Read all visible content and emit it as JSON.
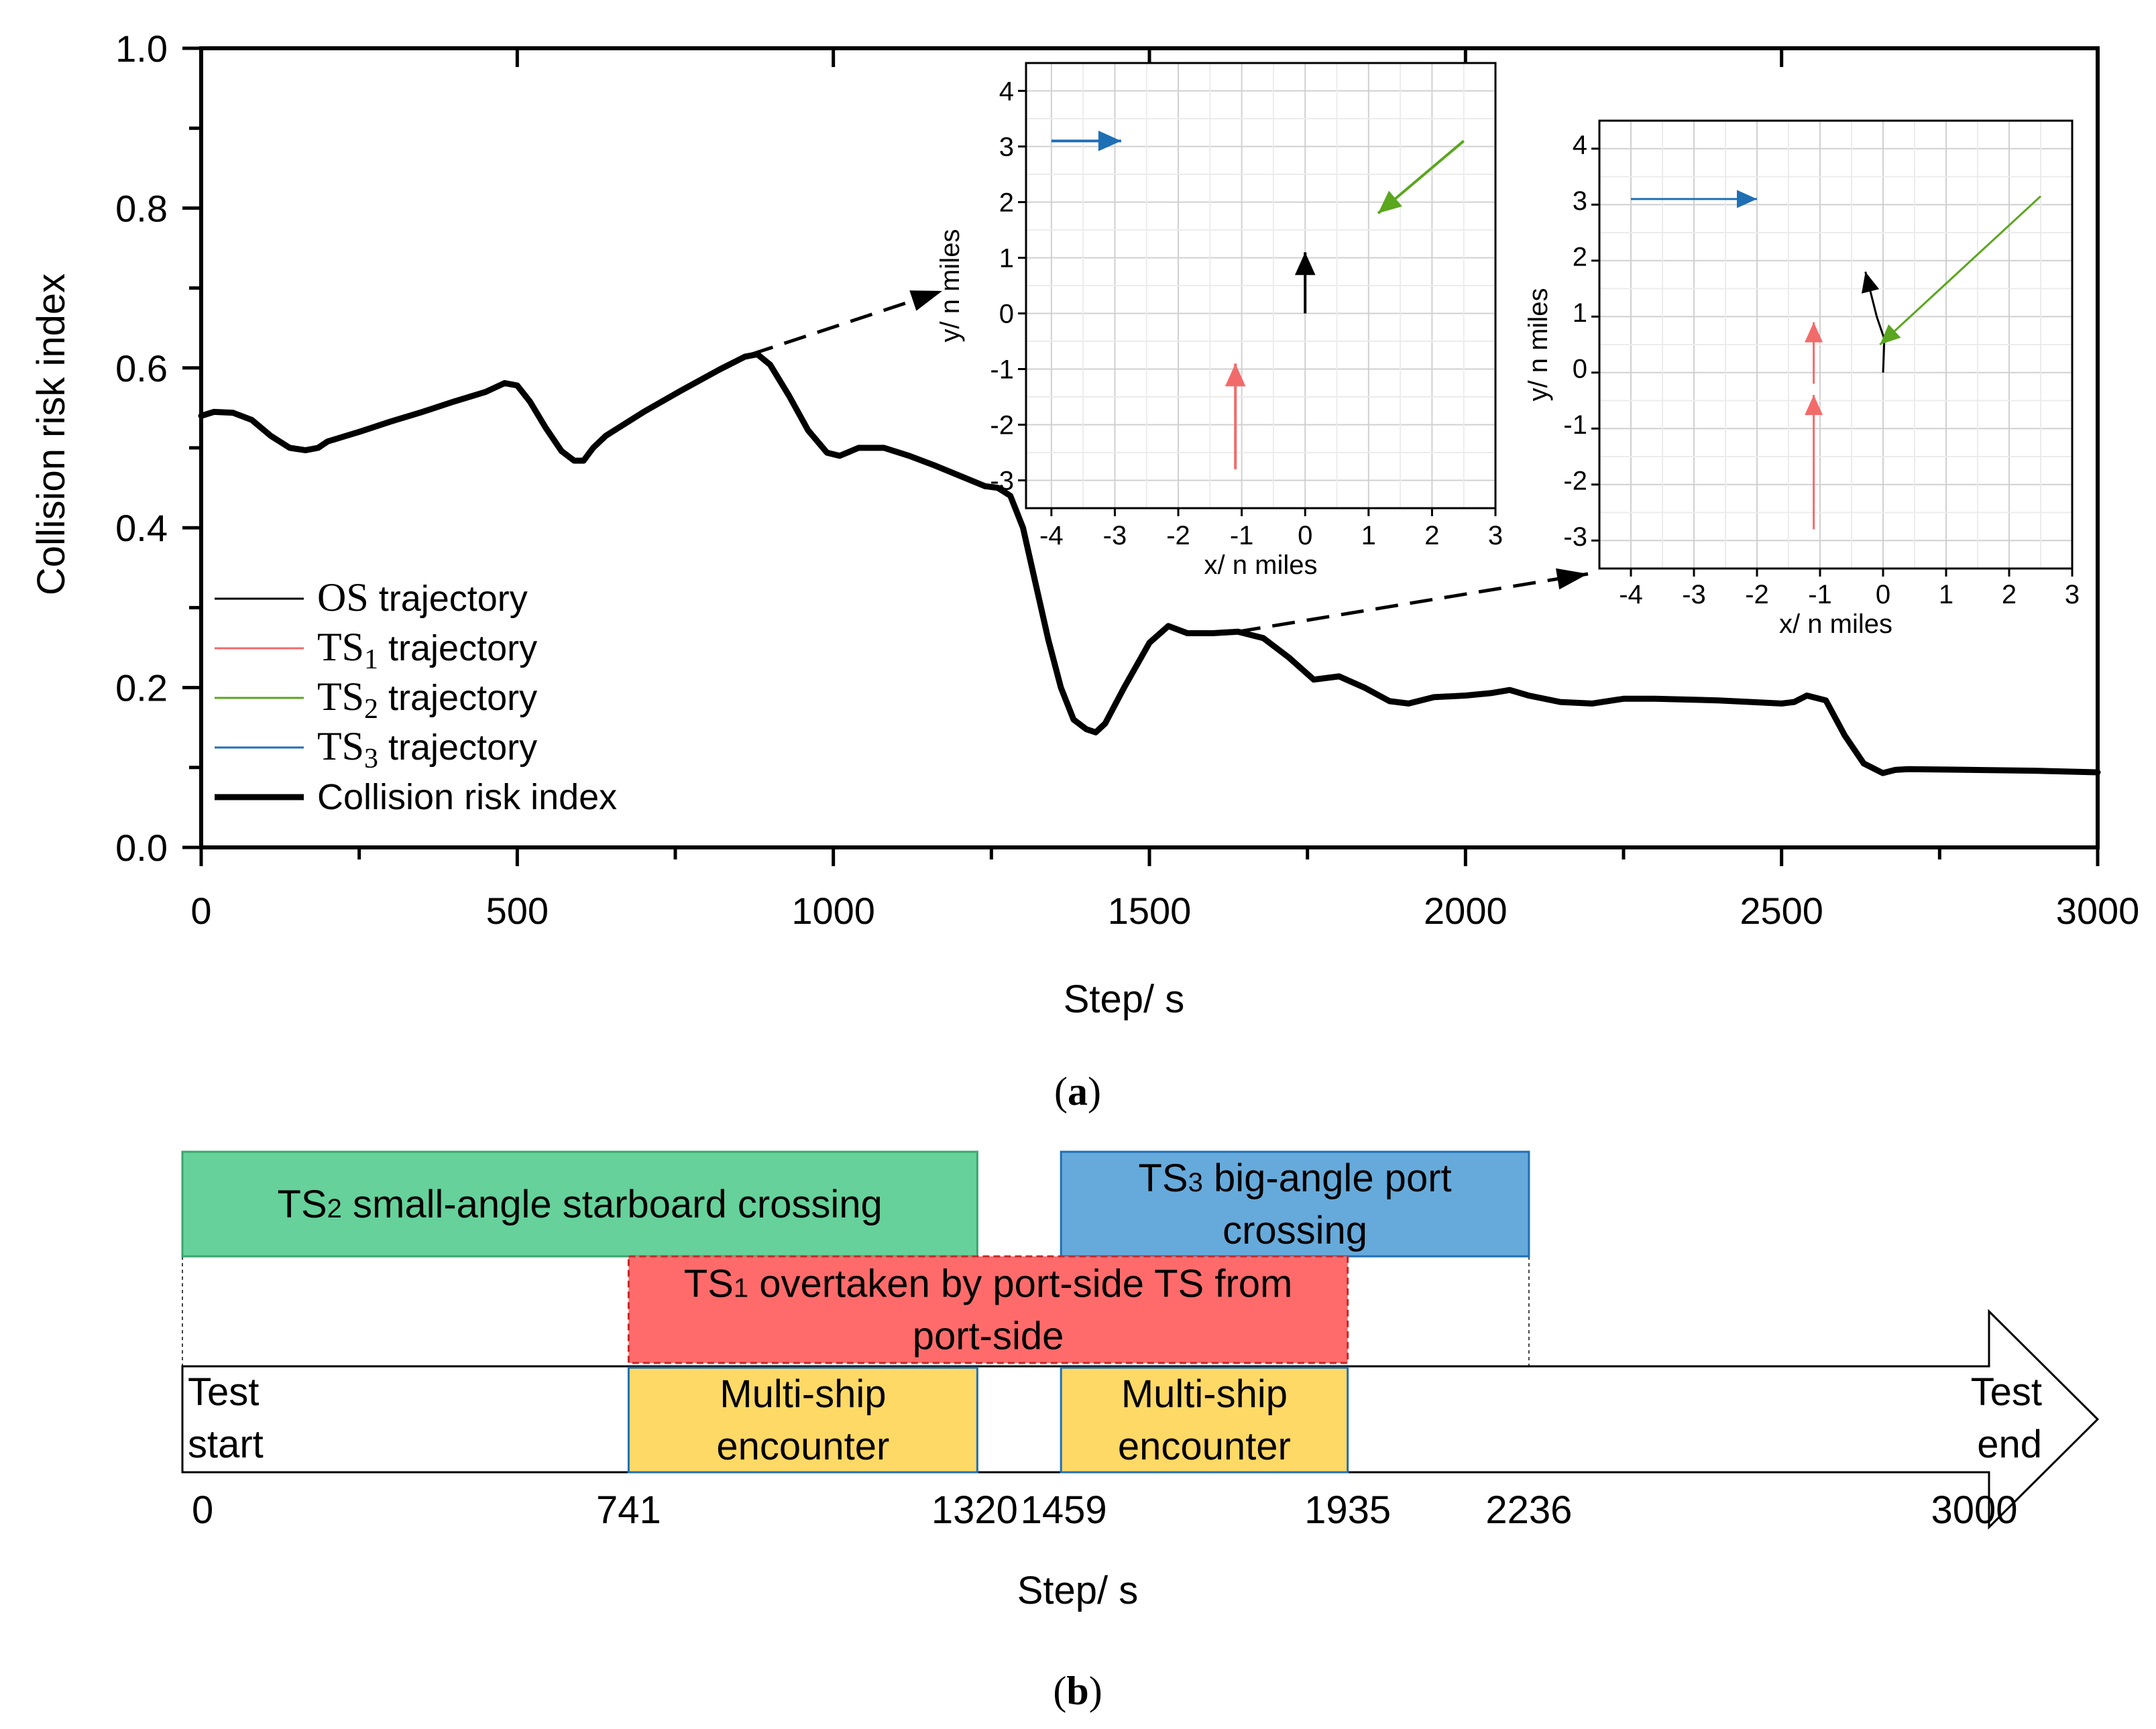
{
  "chart_data": [
    {
      "type": "line",
      "panel": "(a)",
      "xlabel": "Step/ s",
      "ylabel": "Collision risk index",
      "xlim": [
        0,
        3000
      ],
      "ylim": [
        0,
        1.0
      ],
      "xticks": [
        "0",
        "500",
        "1000",
        "1500",
        "2000",
        "2500",
        "3000"
      ],
      "yticks": [
        "0.0",
        "0.2",
        "0.4",
        "0.6",
        "0.8",
        "1.0"
      ],
      "series": [
        {
          "name": "Collision risk index",
          "color": "#000000",
          "x": [
            0,
            20,
            50,
            80,
            110,
            140,
            165,
            185,
            200,
            250,
            300,
            350,
            400,
            450,
            480,
            500,
            520,
            545,
            570,
            590,
            605,
            620,
            640,
            700,
            760,
            820,
            860,
            880,
            900,
            930,
            960,
            990,
            1010,
            1040,
            1080,
            1120,
            1160,
            1200,
            1240,
            1260,
            1280,
            1300,
            1320,
            1340,
            1360,
            1380,
            1400,
            1415,
            1430,
            1460,
            1500,
            1530,
            1560,
            1600,
            1640,
            1680,
            1720,
            1760,
            1800,
            1840,
            1880,
            1910,
            1950,
            2000,
            2040,
            2070,
            2100,
            2150,
            2200,
            2250,
            2300,
            2400,
            2500,
            2520,
            2540,
            2570,
            2600,
            2630,
            2660,
            2680,
            2700,
            2800,
            2900,
            3000
          ],
          "values": [
            0.54,
            0.545,
            0.544,
            0.535,
            0.515,
            0.5,
            0.497,
            0.5,
            0.508,
            0.52,
            0.533,
            0.545,
            0.558,
            0.57,
            0.581,
            0.578,
            0.558,
            0.525,
            0.496,
            0.484,
            0.484,
            0.5,
            0.515,
            0.545,
            0.572,
            0.598,
            0.614,
            0.617,
            0.604,
            0.565,
            0.522,
            0.494,
            0.49,
            0.5,
            0.5,
            0.49,
            0.478,
            0.465,
            0.452,
            0.45,
            0.44,
            0.4,
            0.33,
            0.26,
            0.2,
            0.16,
            0.148,
            0.144,
            0.155,
            0.2,
            0.256,
            0.277,
            0.268,
            0.268,
            0.27,
            0.262,
            0.238,
            0.21,
            0.214,
            0.2,
            0.183,
            0.18,
            0.188,
            0.19,
            0.193,
            0.197,
            0.19,
            0.182,
            0.18,
            0.186,
            0.186,
            0.184,
            0.18,
            0.182,
            0.19,
            0.184,
            0.14,
            0.105,
            0.093,
            0.097,
            0.098,
            0.097,
            0.096,
            0.094
          ]
        }
      ],
      "legend": [
        {
          "math": "OS",
          "sub": "",
          "text": " trajectory",
          "color": "#000000"
        },
        {
          "math": "TS",
          "sub": "1",
          "text": " trajectory",
          "color": "#f26b6b"
        },
        {
          "math": "TS",
          "sub": "2",
          "text": " trajectory",
          "color": "#5aa61e"
        },
        {
          "math": "TS",
          "sub": "3",
          "text": " trajectory",
          "color": "#1f6fb5"
        },
        {
          "math": "",
          "sub": "",
          "text": "Collision risk index",
          "color": "#000000"
        }
      ],
      "insets": [
        {
          "at_step": 870,
          "xlabel": "x/ n miles",
          "ylabel": "y/ n miles",
          "xlim": [
            -4.4,
            3.0
          ],
          "ylim": [
            -3.5,
            4.5
          ],
          "xticks": [
            "-4",
            "-3",
            "-2",
            "-1",
            "0",
            "1",
            "2",
            "3"
          ],
          "yticks": [
            "-3",
            "-2",
            "-1",
            "0",
            "1",
            "2",
            "3",
            "4"
          ],
          "tracks": [
            {
              "ship": "OS",
              "color": "#000000",
              "points": [
                [
                  0,
                  0
                ],
                [
                  0,
                  1.1
                ]
              ]
            },
            {
              "ship": "TS1",
              "color": "#f26b6b",
              "points": [
                [
                  -1.1,
                  -2.8
                ],
                [
                  -1.1,
                  -0.9
                ]
              ]
            },
            {
              "ship": "TS2",
              "color": "#5aa61e",
              "points": [
                [
                  2.5,
                  3.1
                ],
                [
                  1.15,
                  1.8
                ]
              ]
            },
            {
              "ship": "TS3",
              "color": "#1f6fb5",
              "points": [
                [
                  -4.0,
                  3.1
                ],
                [
                  -2.9,
                  3.1
                ]
              ]
            }
          ]
        },
        {
          "at_step": 1640,
          "xlabel": "x/ n miles",
          "ylabel": "y/ n miles",
          "xlim": [
            -4.5,
            3.0
          ],
          "ylim": [
            -3.5,
            4.5
          ],
          "xticks": [
            "-4",
            "-3",
            "-2",
            "-1",
            "0",
            "1",
            "2",
            "3"
          ],
          "yticks": [
            "-3",
            "-2",
            "-1",
            "0",
            "1",
            "2",
            "3",
            "4"
          ],
          "tracks": [
            {
              "ship": "OS",
              "color": "#000000",
              "points": [
                [
                  0,
                  0
                ],
                [
                  0.02,
                  0.6
                ],
                [
                  -0.1,
                  1.0
                ],
                [
                  -0.28,
                  1.8
                ]
              ]
            },
            {
              "ship": "TS1-a",
              "color": "#f26b6b",
              "points": [
                [
                  -1.1,
                  -2.8
                ],
                [
                  -1.1,
                  -0.4
                ]
              ]
            },
            {
              "ship": "TS1-b",
              "color": "#f26b6b",
              "points": [
                [
                  -1.1,
                  -0.2
                ],
                [
                  -1.1,
                  0.9
                ]
              ]
            },
            {
              "ship": "TS2",
              "color": "#5aa61e",
              "points": [
                [
                  2.5,
                  3.15
                ],
                [
                  -0.05,
                  0.5
                ]
              ]
            },
            {
              "ship": "TS3",
              "color": "#1f6fb5",
              "points": [
                [
                  -4.0,
                  3.1
                ],
                [
                  -2.0,
                  3.1
                ]
              ]
            }
          ]
        }
      ]
    },
    {
      "type": "timeline",
      "panel": "(b)",
      "xlabel": "Step/ s",
      "xlim": [
        0,
        3000
      ],
      "tick_values": [
        0,
        741,
        1320,
        1459,
        1935,
        2236,
        3000
      ],
      "tick_labels": [
        "0",
        "741",
        "1320",
        "1459",
        "1935",
        "2236",
        "3000"
      ],
      "start_label": [
        "Test",
        "start"
      ],
      "end_label": [
        "Test",
        "end"
      ],
      "events": [
        {
          "prefix": "TS",
          "sub": "2",
          "lines": [
            " small-angle starboard crossing"
          ],
          "start": 0,
          "end": 1320,
          "lane": 0,
          "color": "#66d19a"
        },
        {
          "prefix": "TS",
          "sub": "3",
          "lines": [
            " big-angle port",
            "crossing"
          ],
          "start": 1459,
          "end": 2236,
          "lane": 0,
          "color": "#66aadb"
        },
        {
          "prefix": "TS",
          "sub": "1",
          "lines": [
            " overtaken by port-side TS from",
            "port-side"
          ],
          "start": 741,
          "end": 1935,
          "lane": 1,
          "color": "#ff6b6b"
        },
        {
          "prefix": "",
          "sub": "",
          "lines": [
            "Multi-ship",
            "encounter"
          ],
          "start": 741,
          "end": 1320,
          "lane": 2,
          "color": "#ffd966"
        },
        {
          "prefix": "",
          "sub": "",
          "lines": [
            "Multi-ship",
            "encounter"
          ],
          "start": 1459,
          "end": 1935,
          "lane": 2,
          "color": "#ffd966"
        }
      ]
    }
  ]
}
